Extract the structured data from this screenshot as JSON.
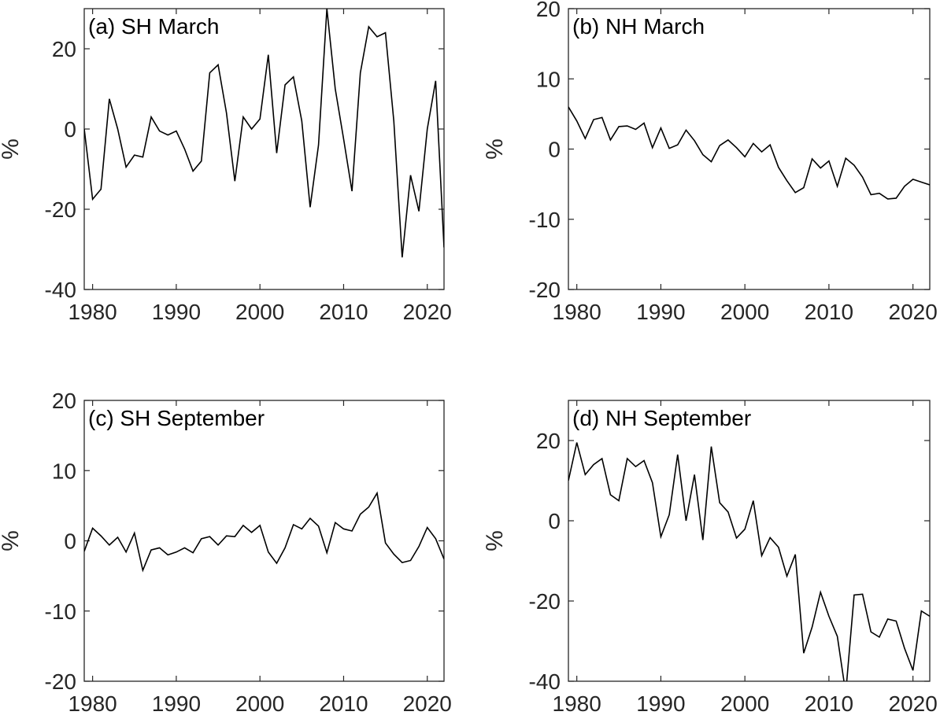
{
  "chart_data": [
    {
      "type": "line",
      "title": "(a) SH March",
      "ylabel": "%",
      "xlim": [
        1979,
        2022
      ],
      "ylim": [
        -40,
        30
      ],
      "xticks": [
        1980,
        1990,
        2000,
        2010,
        2020
      ],
      "yticks": [
        -40,
        -20,
        0,
        20
      ],
      "series": [
        {
          "x": [
            1979,
            1980,
            1981,
            1982,
            1983,
            1984,
            1985,
            1986,
            1987,
            1988,
            1989,
            1990,
            1991,
            1992,
            1993,
            1994,
            1995,
            1996,
            1997,
            1998,
            1999,
            2000,
            2001,
            2002,
            2003,
            2004,
            2005,
            2006,
            2007,
            2008,
            2009,
            2010,
            2011,
            2012,
            2013,
            2014,
            2015,
            2016,
            2017,
            2018,
            2019,
            2020,
            2021,
            2022
          ],
          "values": [
            0,
            -17.5,
            -15,
            7.5,
            0,
            -9.5,
            -6.5,
            -7,
            3,
            -0.5,
            -1.5,
            -0.5,
            -5,
            -10.5,
            -8,
            14,
            16,
            4,
            -13,
            3,
            0,
            2.5,
            18.5,
            -6,
            11,
            13,
            2,
            -19.5,
            -4,
            30,
            10,
            -2.5,
            -15.5,
            14,
            25.5,
            23,
            24,
            2,
            -32,
            -11.5,
            -20.5,
            0,
            12,
            -29.5
          ],
          "color": "#000000"
        }
      ]
    },
    {
      "type": "line",
      "title": "(b) NH March",
      "ylabel": "%",
      "xlim": [
        1979,
        2022
      ],
      "ylim": [
        -20,
        20
      ],
      "xticks": [
        1980,
        1990,
        2000,
        2010,
        2020
      ],
      "yticks": [
        -20,
        -10,
        0,
        10,
        20
      ],
      "series": [
        {
          "x": [
            1979,
            1980,
            1981,
            1982,
            1983,
            1984,
            1985,
            1986,
            1987,
            1988,
            1989,
            1990,
            1991,
            1992,
            1993,
            1994,
            1995,
            1996,
            1997,
            1998,
            1999,
            2000,
            2001,
            2002,
            2003,
            2004,
            2005,
            2006,
            2007,
            2008,
            2009,
            2010,
            2011,
            2012,
            2013,
            2014,
            2015,
            2016,
            2017,
            2018,
            2019,
            2020,
            2021,
            2022
          ],
          "values": [
            6,
            4,
            1.5,
            4.2,
            4.5,
            1.3,
            3.2,
            3.3,
            2.8,
            3.7,
            0.2,
            3,
            0.1,
            0.6,
            2.7,
            1.2,
            -0.8,
            -1.8,
            0.5,
            1.3,
            0.2,
            -1.1,
            0.8,
            -0.4,
            0.6,
            -2.6,
            -4.5,
            -6.2,
            -5.5,
            -1.4,
            -2.7,
            -1.7,
            -5.3,
            -1.3,
            -2.3,
            -4,
            -6.5,
            -6.3,
            -7.1,
            -7,
            -5.3,
            -4.3,
            -4.7,
            -5.1
          ],
          "color": "#000000"
        }
      ]
    },
    {
      "type": "line",
      "title": "(c) SH September",
      "ylabel": "%",
      "xlim": [
        1979,
        2022
      ],
      "ylim": [
        -20,
        20
      ],
      "xticks": [
        1980,
        1990,
        2000,
        2010,
        2020
      ],
      "yticks": [
        -20,
        -10,
        0,
        10,
        20
      ],
      "series": [
        {
          "x": [
            1979,
            1980,
            1981,
            1982,
            1983,
            1984,
            1985,
            1986,
            1987,
            1988,
            1989,
            1990,
            1991,
            1992,
            1993,
            1994,
            1995,
            1996,
            1997,
            1998,
            1999,
            2000,
            2001,
            2002,
            2003,
            2004,
            2005,
            2006,
            2007,
            2008,
            2009,
            2010,
            2011,
            2012,
            2013,
            2014,
            2015,
            2016,
            2017,
            2018,
            2019,
            2020,
            2021,
            2022
          ],
          "values": [
            -1.5,
            1.8,
            0.7,
            -0.6,
            0.5,
            -1.6,
            1.1,
            -4.2,
            -1.3,
            -1,
            -2,
            -1.6,
            -1,
            -1.7,
            0.3,
            0.6,
            -0.6,
            0.7,
            0.6,
            2.2,
            1.2,
            2.2,
            -1.6,
            -3.2,
            -1,
            2.3,
            1.7,
            3.2,
            2.1,
            -1.7,
            2.6,
            1.7,
            1.4,
            3.8,
            4.8,
            6.8,
            -0.3,
            -1.9,
            -3.1,
            -2.8,
            -0.8,
            1.9,
            0.3,
            -2.6
          ],
          "color": "#000000"
        }
      ]
    },
    {
      "type": "line",
      "title": "(d) NH September",
      "ylabel": "%",
      "xlim": [
        1979,
        2022
      ],
      "ylim": [
        -40,
        30
      ],
      "xticks": [
        1980,
        1990,
        2000,
        2010,
        2020
      ],
      "yticks": [
        -40,
        -20,
        0,
        20
      ],
      "series": [
        {
          "x": [
            1979,
            1980,
            1981,
            1982,
            1983,
            1984,
            1985,
            1986,
            1987,
            1988,
            1989,
            1990,
            1991,
            1992,
            1993,
            1994,
            1995,
            1996,
            1997,
            1998,
            1999,
            2000,
            2001,
            2002,
            2003,
            2004,
            2005,
            2006,
            2007,
            2008,
            2009,
            2010,
            2011,
            2012,
            2013,
            2014,
            2015,
            2016,
            2017,
            2018,
            2019,
            2020,
            2021,
            2022
          ],
          "values": [
            10,
            19.5,
            11.5,
            14,
            15.5,
            6.5,
            5,
            15.5,
            13.5,
            15,
            9.5,
            -4,
            1.5,
            16.5,
            0,
            11.5,
            -4.8,
            18.5,
            4.5,
            2.2,
            -4.3,
            -2.1,
            5,
            -8.7,
            -4.2,
            -6.6,
            -13.8,
            -8.4,
            -33,
            -26.5,
            -17.8,
            -23.8,
            -28.8,
            -43,
            -18.5,
            -18.3,
            -27.7,
            -29,
            -24.5,
            -25,
            -31.8,
            -37.3,
            -22.5,
            -23.8
          ],
          "color": "#000000"
        }
      ]
    }
  ]
}
